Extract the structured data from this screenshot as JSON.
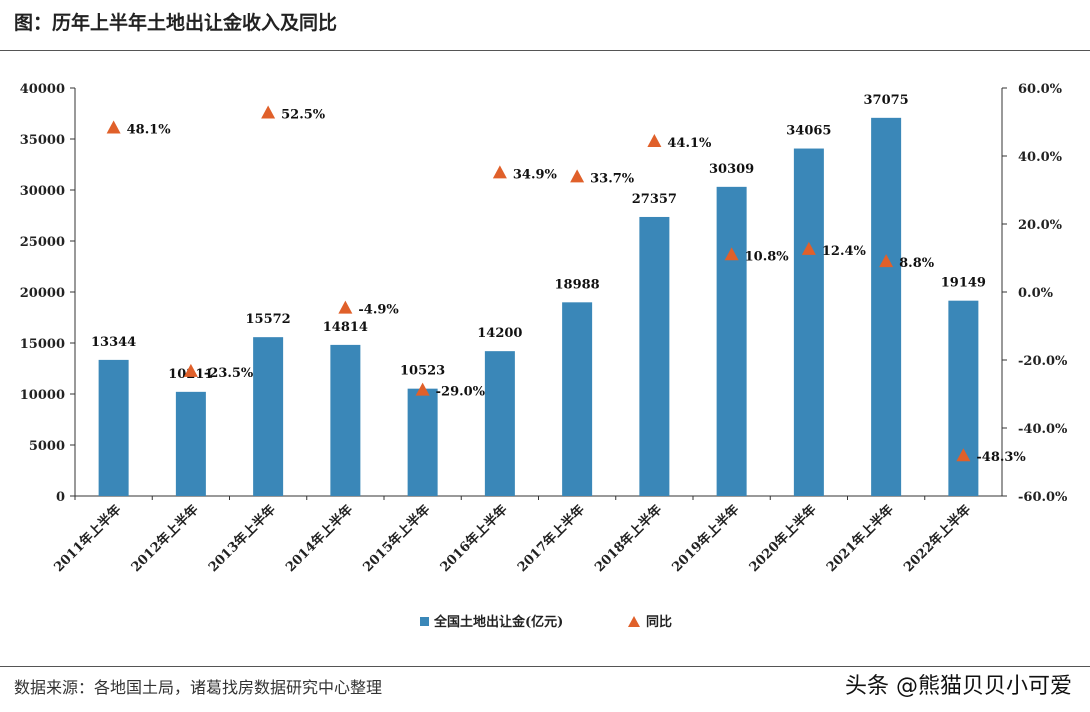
{
  "title": "图：历年上半年土地出让金收入及同比",
  "source": "数据来源：各地国土局，诸葛找房数据研究中心整理",
  "watermark": "头条 @熊猫贝贝小可爱",
  "chart_data": {
    "type": "bar",
    "categories": [
      "2011年上半年",
      "2012年上半年",
      "2013年上半年",
      "2014年上半年",
      "2015年上半年",
      "2016年上半年",
      "2017年上半年",
      "2018年上半年",
      "2019年上半年",
      "2020年上半年",
      "2021年上半年",
      "2022年上半年"
    ],
    "series": [
      {
        "name": "全国土地出让金(亿元)",
        "type": "bar",
        "axis": "left",
        "color": "#3a87b8",
        "values": [
          13344,
          10211,
          15572,
          14814,
          10523,
          14200,
          18988,
          27357,
          30309,
          34065,
          37075,
          19149
        ],
        "labels": [
          "13344",
          "10211",
          "15572",
          "14814",
          "10523",
          "14200",
          "18988",
          "27357",
          "30309",
          "34065",
          "37075",
          "19149"
        ]
      },
      {
        "name": "同比",
        "type": "scatter",
        "marker": "triangle",
        "axis": "right",
        "color": "#e0602a",
        "values": [
          48.1,
          -23.5,
          52.5,
          -4.9,
          -29.0,
          34.9,
          33.7,
          44.1,
          10.8,
          12.4,
          8.8,
          -48.3
        ],
        "labels": [
          "48.1%",
          "-23.5%",
          "52.5%",
          "-4.9%",
          "-29.0%",
          "34.9%",
          "33.7%",
          "44.1%",
          "10.8%",
          "12.4%",
          "8.8%",
          "-48.3%"
        ]
      }
    ],
    "y_left": {
      "min": 0,
      "max": 40000,
      "ticks": [
        "0",
        "5000",
        "10000",
        "15000",
        "20000",
        "25000",
        "30000",
        "35000",
        "40000"
      ]
    },
    "y_right": {
      "min": -60,
      "max": 60,
      "ticks": [
        "-60.0%",
        "-40.0%",
        "-20.0%",
        "0.0%",
        "20.0%",
        "40.0%",
        "60.0%"
      ]
    },
    "grid": false,
    "legend_position": "bottom"
  }
}
